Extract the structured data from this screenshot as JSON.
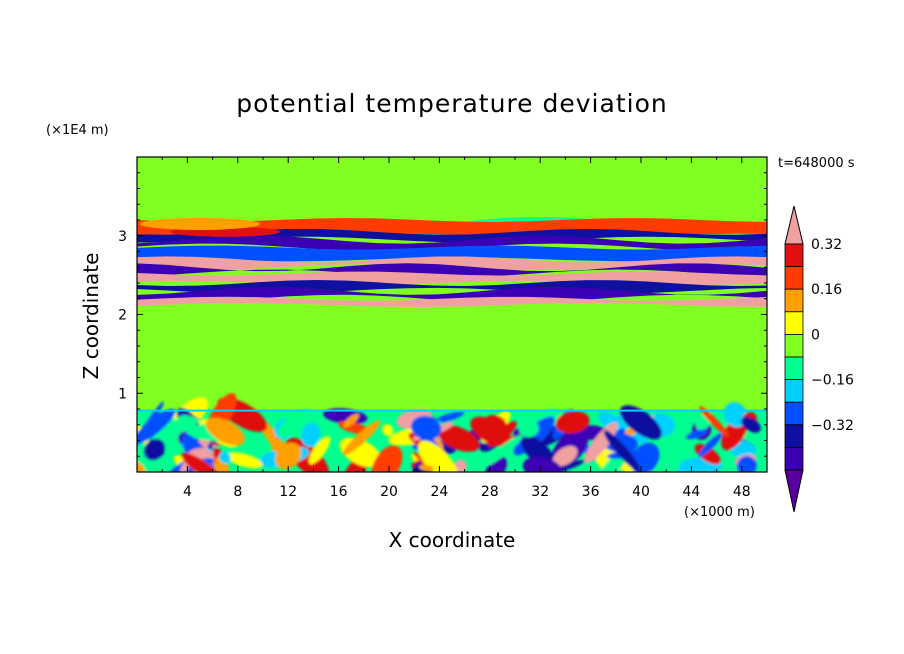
{
  "chart_data": {
    "type": "heatmap",
    "title": "potential temperature deviation",
    "xlabel": "X coordinate",
    "ylabel": "Z coordinate",
    "x_unit": "(×1000 m)",
    "y_unit": "(×1E4 m)",
    "time_label": "t=648000 s",
    "xlim": [
      0,
      50
    ],
    "ylim": [
      0,
      4
    ],
    "x_ticks": [
      4,
      8,
      12,
      16,
      20,
      24,
      28,
      32,
      36,
      40,
      44,
      48
    ],
    "y_ticks": [
      1,
      2,
      3
    ],
    "colorbar": {
      "levels": [
        -0.4,
        -0.32,
        -0.24,
        -0.16,
        -0.08,
        0,
        0.08,
        0.16,
        0.24,
        0.32,
        0.4
      ],
      "colors": [
        "#5a00a0",
        "#3c00b4",
        "#1010a0",
        "#0050ff",
        "#00d0ff",
        "#00ff90",
        "#80ff20",
        "#ffff00",
        "#ffa000",
        "#ff3c00",
        "#e01010",
        "#f0a0a0"
      ],
      "labeled_ticks": [
        0.32,
        0.16,
        0,
        -0.16,
        -0.32
      ],
      "tick_labels": [
        "0.32",
        "0.16",
        "0",
        "−0.16",
        "−0.32"
      ],
      "extend": "both"
    },
    "fields": {
      "background": "#80ff20",
      "layer_bands": [
        {
          "z": [
            3.0,
            3.2
          ],
          "value": 0.3
        },
        {
          "z": [
            2.95,
            3.05
          ],
          "value": -0.32
        },
        {
          "z": [
            2.85,
            2.95
          ],
          "value": -0.4
        },
        {
          "z": [
            2.7,
            2.85
          ],
          "value": -0.24
        },
        {
          "z": [
            2.6,
            2.7
          ],
          "value": 0.4
        },
        {
          "z": [
            2.52,
            2.6
          ],
          "value": -0.4
        },
        {
          "z": [
            2.4,
            2.52
          ],
          "value": 0.4
        },
        {
          "z": [
            2.3,
            2.4
          ],
          "value": -0.32
        },
        {
          "z": [
            2.2,
            2.3
          ],
          "value": -0.4
        },
        {
          "z": [
            2.12,
            2.2
          ],
          "value": 0.4
        }
      ],
      "upper_dip": {
        "x": [
          20,
          44
        ],
        "z": [
          3.0,
          3.35
        ],
        "value": -0.16
      },
      "boundary_layer_top": 0.78,
      "mid_region": {
        "z": [
          0.78,
          2.05
        ],
        "value": 0
      }
    }
  }
}
